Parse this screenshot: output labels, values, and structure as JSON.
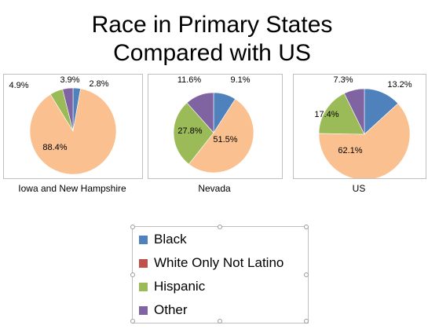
{
  "slide": {
    "title_line1": "Race in Primary States",
    "title_line2": "Compared with US"
  },
  "colors": {
    "Black": "#4f81bd",
    "White Only Not Latino": "#c0504d",
    "Hispanic": "#9bbb59",
    "Other": "#8064a2",
    "White": "#fac090"
  },
  "legend": {
    "items": [
      "Black",
      "White Only Not Latino",
      "Hispanic",
      "Other"
    ]
  },
  "chart_data": [
    {
      "type": "pie",
      "xlabel": "Iowa and New Hampshire",
      "slices": [
        {
          "category": "Black",
          "value": 2.8,
          "label": "2.8%"
        },
        {
          "category": "White",
          "value": 88.4,
          "label": "88.4%"
        },
        {
          "category": "Hispanic",
          "value": 4.9,
          "label": "4.9%"
        },
        {
          "category": "Other",
          "value": 3.9,
          "label": "3.9%"
        }
      ]
    },
    {
      "type": "pie",
      "xlabel": "Nevada",
      "slices": [
        {
          "category": "Black",
          "value": 9.1,
          "label": "9.1%"
        },
        {
          "category": "White",
          "value": 51.5,
          "label": "51.5%"
        },
        {
          "category": "Hispanic",
          "value": 27.8,
          "label": "27.8%"
        },
        {
          "category": "Other",
          "value": 11.6,
          "label": "11.6%"
        }
      ]
    },
    {
      "type": "pie",
      "xlabel": "US",
      "slices": [
        {
          "category": "Black",
          "value": 13.2,
          "label": "13.2%"
        },
        {
          "category": "White",
          "value": 62.1,
          "label": "62.1%"
        },
        {
          "category": "Hispanic",
          "value": 17.4,
          "label": "17.4%"
        },
        {
          "category": "Other",
          "value": 7.3,
          "label": "7.3%"
        }
      ]
    }
  ]
}
